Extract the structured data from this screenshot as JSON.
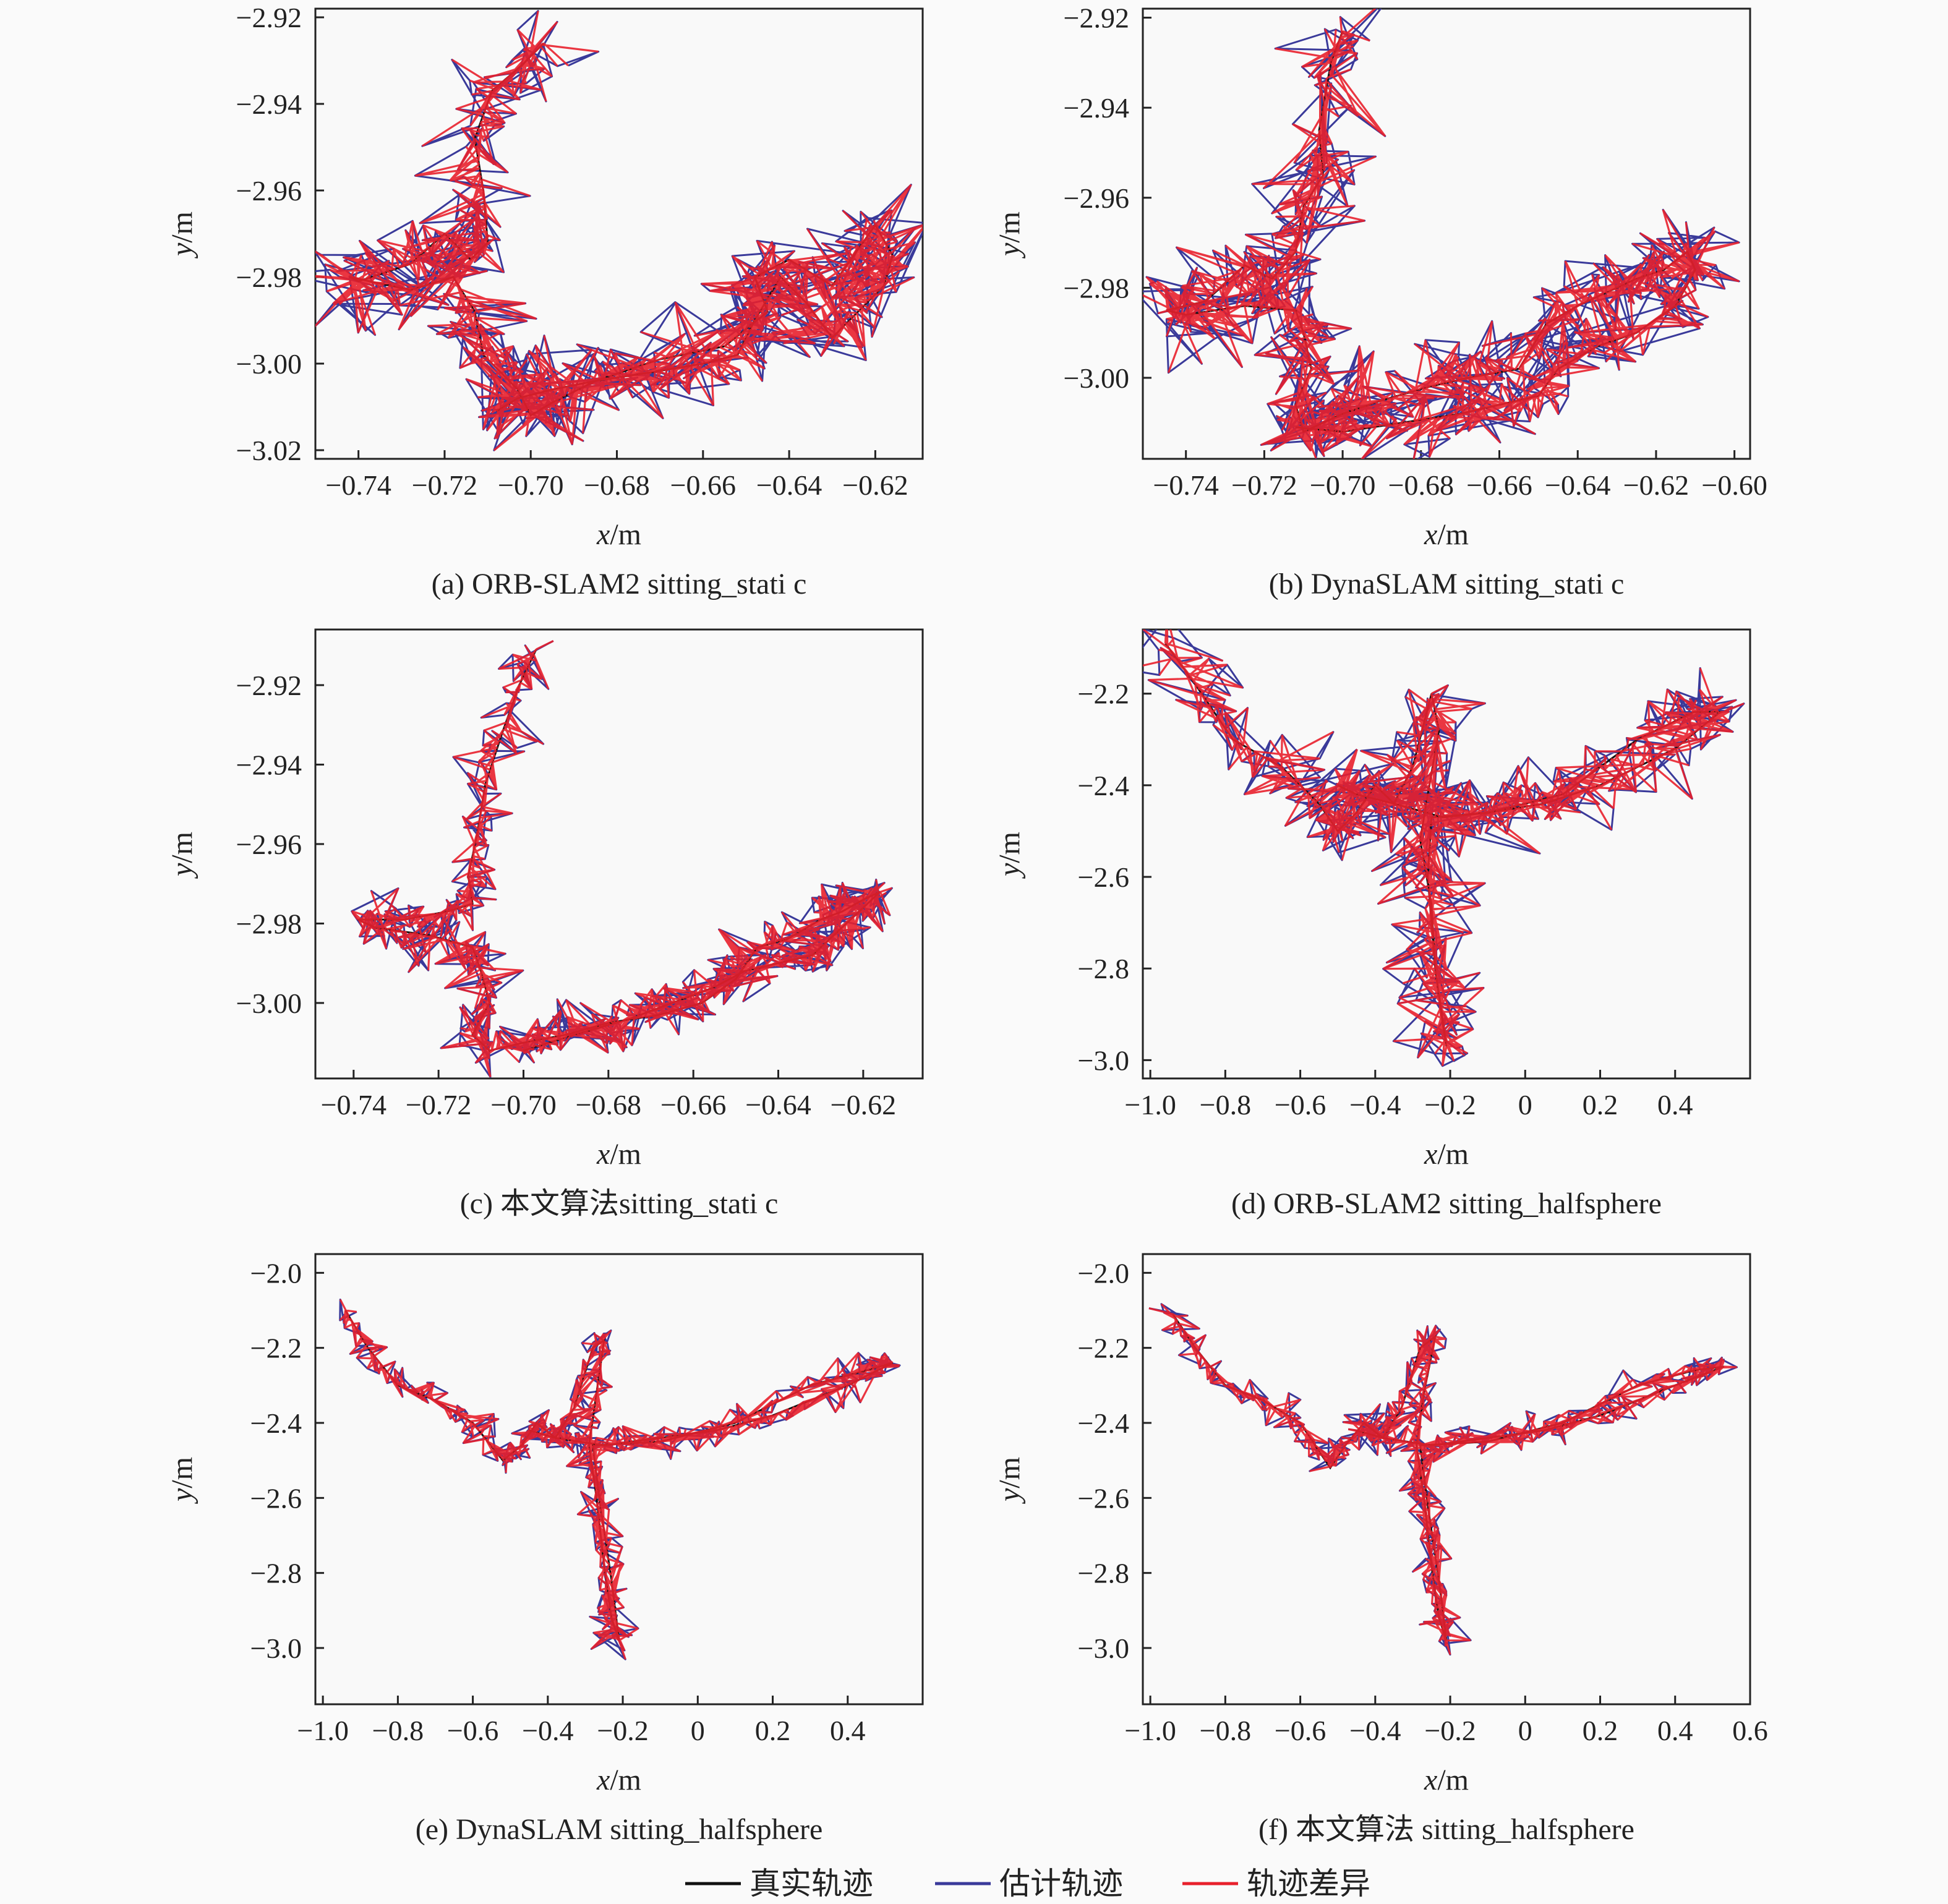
{
  "colors": {
    "true_traj": "#111111",
    "est_traj": "#3a3a9a",
    "diff": "#e8202c",
    "axis": "#222222",
    "bg": "#fafafa"
  },
  "legend": [
    {
      "label": "真实轨迹",
      "color": "#111111"
    },
    {
      "label": "估计轨迹",
      "color": "#3a3a9a"
    },
    {
      "label": "轨迹差异",
      "color": "#e8202c"
    }
  ],
  "chart_data": [
    {
      "type": "line",
      "caption": "(a) ORB-SLAM2 sitting_stati c",
      "xlabel_var": "x",
      "xlabel_unit": "/m",
      "ylabel_var": "y",
      "ylabel_unit": "/m",
      "xlim": [
        -0.75,
        -0.609
      ],
      "ylim": [
        -3.022,
        -2.918
      ],
      "xticks": [
        -0.74,
        -0.72,
        -0.7,
        -0.68,
        -0.66,
        -0.64,
        -0.62
      ],
      "xtick_labels": [
        "−0.74",
        "−0.72",
        "−0.70",
        "−0.68",
        "−0.66",
        "−0.64",
        "−0.62"
      ],
      "yticks": [
        -2.92,
        -2.94,
        -2.96,
        -2.98,
        -3.0,
        -3.02
      ],
      "ytick_labels": [
        "−2.92",
        "−2.94",
        "−2.96",
        "−2.98",
        "−3.00",
        "−3.02"
      ],
      "jitter": 0.006,
      "series": [
        {
          "x": [
            -0.697,
            -0.702,
            -0.709,
            -0.713,
            -0.711,
            -0.71,
            -0.714,
            -0.72,
            -0.728,
            -0.74,
            -0.742,
            -0.728,
            -0.718,
            -0.713,
            -0.711,
            -0.703,
            -0.7,
            -0.695,
            -0.685,
            -0.67,
            -0.655,
            -0.645,
            -0.648,
            -0.64,
            -0.63,
            -0.625,
            -0.62,
            -0.616,
            -0.618,
            -0.626,
            -0.63,
            -0.636,
            -0.642,
            -0.648,
            -0.652,
            -0.66,
            -0.672,
            -0.685,
            -0.695,
            -0.703,
            -0.708
          ],
          "y": [
            -2.926,
            -2.931,
            -2.937,
            -2.948,
            -2.96,
            -2.972,
            -2.976,
            -2.97,
            -2.977,
            -2.981,
            -2.98,
            -2.983,
            -2.98,
            -2.988,
            -2.998,
            -3.006,
            -3.012,
            -3.009,
            -3.004,
            -2.999,
            -2.996,
            -2.988,
            -2.98,
            -2.976,
            -2.982,
            -2.975,
            -2.968,
            -2.975,
            -2.982,
            -2.99,
            -2.994,
            -2.986,
            -2.98,
            -2.99,
            -2.998,
            -3.0,
            -3.002,
            -3.004,
            -3.006,
            -3.008,
            -3.011
          ]
        }
      ]
    },
    {
      "type": "line",
      "caption": "(b) DynaSLAM sitting_stati c",
      "xlabel_var": "x",
      "xlabel_unit": "/m",
      "ylabel_var": "y",
      "ylabel_unit": "/m",
      "xlim": [
        -0.751,
        -0.596
      ],
      "ylim": [
        -3.018,
        -2.918
      ],
      "xticks": [
        -0.74,
        -0.72,
        -0.7,
        -0.68,
        -0.66,
        -0.64,
        -0.62,
        -0.6
      ],
      "xtick_labels": [
        "−0.74",
        "−0.72",
        "−0.70",
        "−0.68",
        "−0.66",
        "−0.64",
        "−0.62",
        "−0.60"
      ],
      "yticks": [
        -2.92,
        -2.94,
        -2.96,
        -2.98,
        -3.0
      ],
      "ytick_labels": [
        "−2.92",
        "−2.94",
        "−2.96",
        "−2.98",
        "−3.00"
      ],
      "jitter": 0.006,
      "series": [
        {
          "x": [
            -0.7,
            -0.703,
            -0.706,
            -0.705,
            -0.71,
            -0.712,
            -0.718,
            -0.725,
            -0.735,
            -0.745,
            -0.74,
            -0.725,
            -0.712,
            -0.71,
            -0.708,
            -0.712,
            -0.71,
            -0.7,
            -0.69,
            -0.678,
            -0.668,
            -0.655,
            -0.648,
            -0.64,
            -0.63,
            -0.625,
            -0.618,
            -0.612,
            -0.61,
            -0.615,
            -0.625,
            -0.635,
            -0.645,
            -0.65,
            -0.66,
            -0.67,
            -0.685,
            -0.7,
            -0.712
          ],
          "y": [
            -2.923,
            -2.93,
            -2.945,
            -2.955,
            -2.962,
            -2.972,
            -2.978,
            -2.975,
            -2.983,
            -2.985,
            -2.986,
            -2.984,
            -2.985,
            -2.99,
            -2.998,
            -3.006,
            -3.012,
            -3.008,
            -3.005,
            -3.002,
            -3.0,
            -2.998,
            -2.988,
            -2.984,
            -2.98,
            -2.978,
            -2.976,
            -2.972,
            -2.976,
            -2.984,
            -2.99,
            -2.993,
            -2.998,
            -3.004,
            -3.006,
            -3.008,
            -3.01,
            -3.012,
            -3.011
          ]
        }
      ]
    },
    {
      "type": "line",
      "caption": "(c) 本文算法sitting_stati c",
      "xlabel_var": "x",
      "xlabel_unit": "/m",
      "ylabel_var": "y",
      "ylabel_unit": "/m",
      "xlim": [
        -0.749,
        -0.606
      ],
      "ylim": [
        -3.019,
        -2.906
      ],
      "xticks": [
        -0.74,
        -0.72,
        -0.7,
        -0.68,
        -0.66,
        -0.64,
        -0.62
      ],
      "xtick_labels": [
        "−0.74",
        "−0.72",
        "−0.70",
        "−0.68",
        "−0.66",
        "−0.64",
        "−0.62"
      ],
      "yticks": [
        -2.92,
        -2.94,
        -2.96,
        -2.98,
        -3.0
      ],
      "ytick_labels": [
        "−2.92",
        "−2.94",
        "−2.96",
        "−2.98",
        "−3.00"
      ],
      "jitter": 0.004,
      "series": [
        {
          "x": [
            -0.697,
            -0.701,
            -0.705,
            -0.709,
            -0.711,
            -0.713,
            -0.712,
            -0.718,
            -0.728,
            -0.739,
            -0.735,
            -0.722,
            -0.712,
            -0.71,
            -0.708,
            -0.712,
            -0.708,
            -0.7,
            -0.69,
            -0.68,
            -0.668,
            -0.658,
            -0.65,
            -0.645,
            -0.638,
            -0.63,
            -0.625,
            -0.62,
            -0.616,
            -0.622,
            -0.628,
            -0.632,
            -0.64,
            -0.648,
            -0.655,
            -0.665,
            -0.675,
            -0.688,
            -0.7
          ],
          "y": [
            -2.911,
            -2.92,
            -2.932,
            -2.945,
            -2.958,
            -2.968,
            -2.975,
            -2.977,
            -2.979,
            -2.979,
            -2.981,
            -2.983,
            -2.986,
            -2.992,
            -3.0,
            -3.008,
            -3.012,
            -3.01,
            -3.008,
            -3.005,
            -3.003,
            -3.0,
            -2.994,
            -2.986,
            -2.984,
            -2.979,
            -2.977,
            -2.974,
            -2.972,
            -2.978,
            -2.984,
            -2.988,
            -2.99,
            -2.992,
            -2.996,
            -3.0,
            -3.004,
            -3.008,
            -3.012
          ]
        }
      ]
    },
    {
      "type": "line",
      "caption": "(d) ORB-SLAM2 sitting_halfsphere",
      "xlabel_var": "x",
      "xlabel_unit": "/m",
      "ylabel_var": "y",
      "ylabel_unit": "/m",
      "xlim": [
        -1.02,
        0.6
      ],
      "ylim": [
        -3.04,
        -2.06
      ],
      "xticks": [
        -1.0,
        -0.8,
        -0.6,
        -0.4,
        -0.2,
        0,
        0.2,
        0.4
      ],
      "xtick_labels": [
        "−1.0",
        "−0.8",
        "−0.6",
        "−0.4",
        "−0.2",
        "0",
        "0.2",
        "0.4"
      ],
      "yticks": [
        -2.2,
        -2.4,
        -2.6,
        -2.8,
        -3.0
      ],
      "ytick_labels": [
        "−2.2",
        "−2.4",
        "−2.6",
        "−2.8",
        "−3.0"
      ],
      "jitter": 0.05,
      "series": [
        {
          "x": [
            -0.96,
            -0.88,
            -0.78,
            -0.65,
            -0.55,
            -0.5,
            -0.45,
            -0.4,
            -0.35,
            -0.3,
            -0.25,
            -0.23,
            -0.26,
            -0.28,
            -0.25,
            -0.24,
            -0.22,
            -0.21,
            -0.24,
            -0.26,
            -0.25,
            -0.1,
            0.1,
            0.3,
            0.45,
            0.52,
            0.4,
            0.2,
            0.05,
            -0.1,
            -0.22,
            -0.35,
            -0.45,
            -0.5
          ],
          "y": [
            -2.09,
            -2.18,
            -2.3,
            -2.36,
            -2.44,
            -2.5,
            -2.46,
            -2.4,
            -2.44,
            -2.36,
            -2.2,
            -2.28,
            -2.42,
            -2.52,
            -2.66,
            -2.8,
            -2.92,
            -2.97,
            -2.8,
            -2.6,
            -2.47,
            -2.46,
            -2.42,
            -2.3,
            -2.24,
            -2.24,
            -2.32,
            -2.4,
            -2.44,
            -2.46,
            -2.47,
            -2.44,
            -2.42,
            -2.4
          ]
        }
      ]
    },
    {
      "type": "line",
      "caption": "(e) DynaSLAM sitting_halfsphere",
      "xlabel_var": "x",
      "xlabel_unit": "/m",
      "ylabel_var": "y",
      "ylabel_unit": "/m",
      "xlim": [
        -1.02,
        0.6
      ],
      "ylim": [
        -3.15,
        -1.95
      ],
      "xticks": [
        -1.0,
        -0.8,
        -0.6,
        -0.4,
        -0.2,
        0,
        0.2,
        0.4
      ],
      "xtick_labels": [
        "−1.0",
        "−0.8",
        "−0.6",
        "−0.4",
        "−0.2",
        "0",
        "0.2",
        "0.4"
      ],
      "yticks": [
        -2.0,
        -2.2,
        -2.4,
        -2.6,
        -2.8,
        -3.0
      ],
      "ytick_labels": [
        "−2.0",
        "−2.2",
        "−2.4",
        "−2.6",
        "−2.8",
        "−3.0"
      ],
      "jitter": 0.025,
      "series": [
        {
          "x": [
            -0.94,
            -0.88,
            -0.8,
            -0.7,
            -0.6,
            -0.52,
            -0.47,
            -0.43,
            -0.38,
            -0.33,
            -0.28,
            -0.25,
            -0.27,
            -0.29,
            -0.27,
            -0.25,
            -0.23,
            -0.21,
            -0.23,
            -0.26,
            -0.28,
            -0.1,
            0.1,
            0.3,
            0.45,
            0.52,
            0.4,
            0.2,
            0.05,
            -0.1,
            -0.25,
            -0.38,
            -0.45
          ],
          "y": [
            -2.1,
            -2.2,
            -2.3,
            -2.34,
            -2.4,
            -2.5,
            -2.46,
            -2.4,
            -2.44,
            -2.36,
            -2.2,
            -2.18,
            -2.32,
            -2.46,
            -2.6,
            -2.78,
            -2.92,
            -2.98,
            -2.82,
            -2.62,
            -2.46,
            -2.45,
            -2.4,
            -2.3,
            -2.26,
            -2.24,
            -2.3,
            -2.38,
            -2.42,
            -2.44,
            -2.46,
            -2.44,
            -2.42
          ]
        }
      ]
    },
    {
      "type": "line",
      "caption": "(f) 本文算法 sitting_halfsphere",
      "xlabel_var": "x",
      "xlabel_unit": "/m",
      "ylabel_var": "y",
      "ylabel_unit": "/m",
      "xlim": [
        -1.02,
        0.6
      ],
      "ylim": [
        -3.15,
        -1.95
      ],
      "xticks": [
        -1.0,
        -0.8,
        -0.6,
        -0.4,
        -0.2,
        0,
        0.2,
        0.4,
        0.6
      ],
      "xtick_labels": [
        "−1.0",
        "−0.8",
        "−0.6",
        "−0.4",
        "−0.2",
        "0",
        "0.2",
        "0.4",
        "0.6"
      ],
      "yticks": [
        -2.0,
        -2.2,
        -2.4,
        -2.6,
        -2.8,
        -3.0
      ],
      "ytick_labels": [
        "−2.0",
        "−2.2",
        "−2.4",
        "−2.6",
        "−2.8",
        "−3.0"
      ],
      "jitter": 0.025,
      "series": [
        {
          "x": [
            -0.94,
            -0.88,
            -0.8,
            -0.7,
            -0.6,
            -0.52,
            -0.48,
            -0.43,
            -0.38,
            -0.33,
            -0.28,
            -0.24,
            -0.27,
            -0.29,
            -0.27,
            -0.25,
            -0.23,
            -0.21,
            -0.23,
            -0.26,
            -0.28,
            -0.1,
            0.1,
            0.3,
            0.45,
            0.53,
            0.4,
            0.2,
            0.05,
            -0.1,
            -0.25,
            -0.38,
            -0.45
          ],
          "y": [
            -2.11,
            -2.2,
            -2.3,
            -2.34,
            -2.4,
            -2.52,
            -2.46,
            -2.4,
            -2.44,
            -2.36,
            -2.2,
            -2.17,
            -2.32,
            -2.46,
            -2.6,
            -2.78,
            -2.92,
            -2.98,
            -2.82,
            -2.62,
            -2.46,
            -2.45,
            -2.4,
            -2.3,
            -2.26,
            -2.25,
            -2.3,
            -2.38,
            -2.42,
            -2.44,
            -2.46,
            -2.44,
            -2.42
          ]
        }
      ]
    }
  ]
}
